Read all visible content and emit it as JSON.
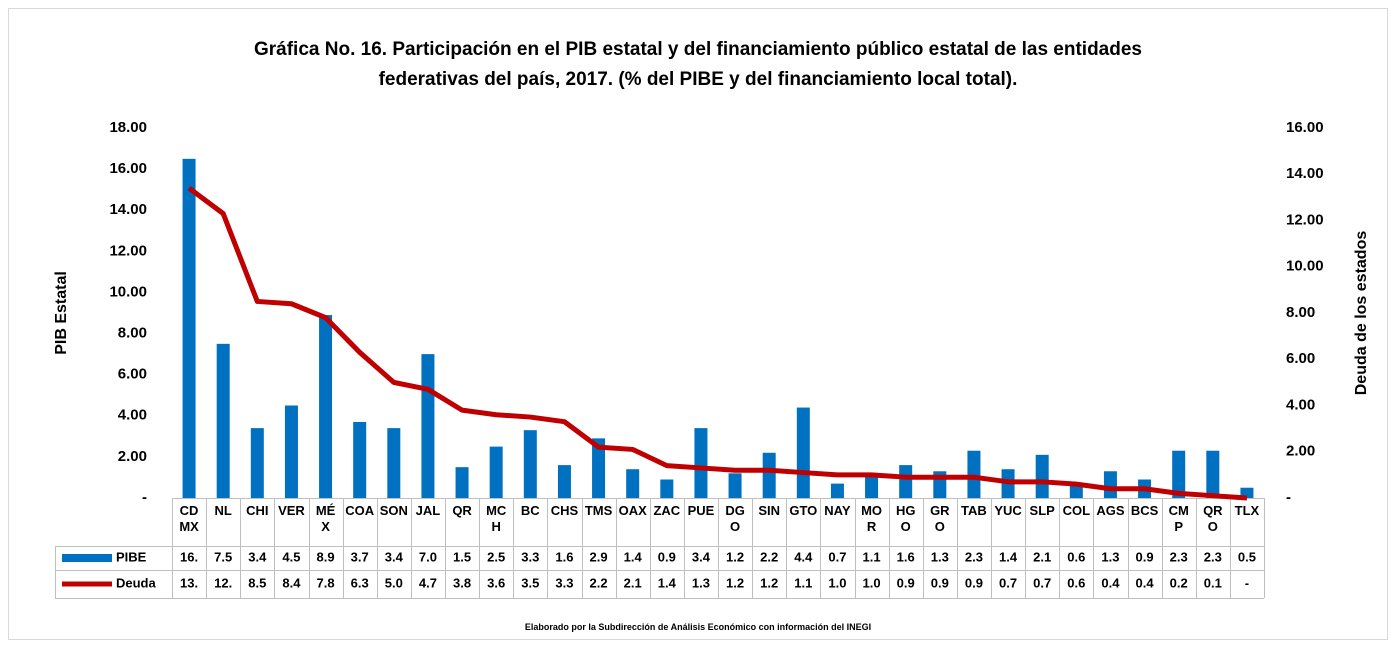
{
  "chart_data": {
    "type": "bar",
    "title": "Gráfica No. 16. Participación en el PIB estatal y del financiamiento público estatal de las entidades\nfederativas del país, 2017. (% del PIBE y del financiamiento  local total).",
    "ylabel": "PIB Estatal",
    "y2label": "Deuda de los estados",
    "note": "Elaborado por la Subdirección de Análisis Económico con información del INEGI",
    "categories": [
      "CD\nMX",
      "NL",
      "CHI",
      "VER",
      "MÉ\nX",
      "COA",
      "SON",
      "JAL",
      "QR",
      "MC\nH",
      "BC",
      "CHS",
      "TMS",
      "OAX",
      "ZAC",
      "PUE",
      "DG\nO",
      "SIN",
      "GTO",
      "NAY",
      "MO\nR",
      "HG\nO",
      "GR\nO",
      "TAB",
      "YUC",
      "SLP",
      "COL",
      "AGS",
      "BCS",
      "CM\nP",
      "QR\nO",
      "TLX"
    ],
    "series": [
      {
        "name": "PIBE",
        "type": "bar",
        "color": "#0070c0",
        "values": [
          16.5,
          7.5,
          3.4,
          4.5,
          8.9,
          3.7,
          3.4,
          7.0,
          1.5,
          2.5,
          3.3,
          1.6,
          2.9,
          1.4,
          0.9,
          3.4,
          1.2,
          2.2,
          4.4,
          0.7,
          1.1,
          1.6,
          1.3,
          2.3,
          1.4,
          2.1,
          0.6,
          1.3,
          0.9,
          2.3,
          2.3,
          0.5
        ],
        "value_labels": [
          "16.",
          "7.5",
          "3.4",
          "4.5",
          "8.9",
          "3.7",
          "3.4",
          "7.0",
          "1.5",
          "2.5",
          "3.3",
          "1.6",
          "2.9",
          "1.4",
          "0.9",
          "3.4",
          "1.2",
          "2.2",
          "4.4",
          "0.7",
          "1.1",
          "1.6",
          "1.3",
          "2.3",
          "1.4",
          "2.1",
          "0.6",
          "1.3",
          "0.9",
          "2.3",
          "2.3",
          "0.5"
        ]
      },
      {
        "name": "Deuda",
        "type": "line",
        "axis": "y2",
        "color": "#c00000",
        "values": [
          13.4,
          12.3,
          8.5,
          8.4,
          7.8,
          6.3,
          5.0,
          4.7,
          3.8,
          3.6,
          3.5,
          3.3,
          2.2,
          2.1,
          1.4,
          1.3,
          1.2,
          1.2,
          1.1,
          1.0,
          1.0,
          0.9,
          0.9,
          0.9,
          0.7,
          0.7,
          0.6,
          0.4,
          0.4,
          0.2,
          0.1,
          0
        ],
        "value_labels": [
          "13.",
          "12.",
          "8.5",
          "8.4",
          "7.8",
          "6.3",
          "5.0",
          "4.7",
          "3.8",
          "3.6",
          "3.5",
          "3.3",
          "2.2",
          "2.1",
          "1.4",
          "1.3",
          "1.2",
          "1.2",
          "1.1",
          "1.0",
          "1.0",
          "0.9",
          "0.9",
          "0.9",
          "0.7",
          "0.7",
          "0.6",
          "0.4",
          "0.4",
          "0.2",
          "0.1",
          "-"
        ]
      }
    ],
    "ylim": [
      0,
      18
    ],
    "yticks": [
      {
        "value": 0,
        "label": "-"
      },
      {
        "value": 2,
        "label": "2.00"
      },
      {
        "value": 4,
        "label": "4.00"
      },
      {
        "value": 6,
        "label": "6.00"
      },
      {
        "value": 8,
        "label": "8.00"
      },
      {
        "value": 10,
        "label": "10.00"
      },
      {
        "value": 12,
        "label": "12.00"
      },
      {
        "value": 14,
        "label": "14.00"
      },
      {
        "value": 16,
        "label": "16.00"
      },
      {
        "value": 18,
        "label": "18.00"
      }
    ],
    "y2lim": [
      0,
      16
    ],
    "y2ticks": [
      {
        "value": 0,
        "label": "-"
      },
      {
        "value": 2,
        "label": "2.00"
      },
      {
        "value": 4,
        "label": "4.00"
      },
      {
        "value": 6,
        "label": "6.00"
      },
      {
        "value": 8,
        "label": "8.00"
      },
      {
        "value": 10,
        "label": "10.00"
      },
      {
        "value": 12,
        "label": "12.00"
      },
      {
        "value": 14,
        "label": "14.00"
      },
      {
        "value": 16,
        "label": "16.00"
      }
    ]
  }
}
